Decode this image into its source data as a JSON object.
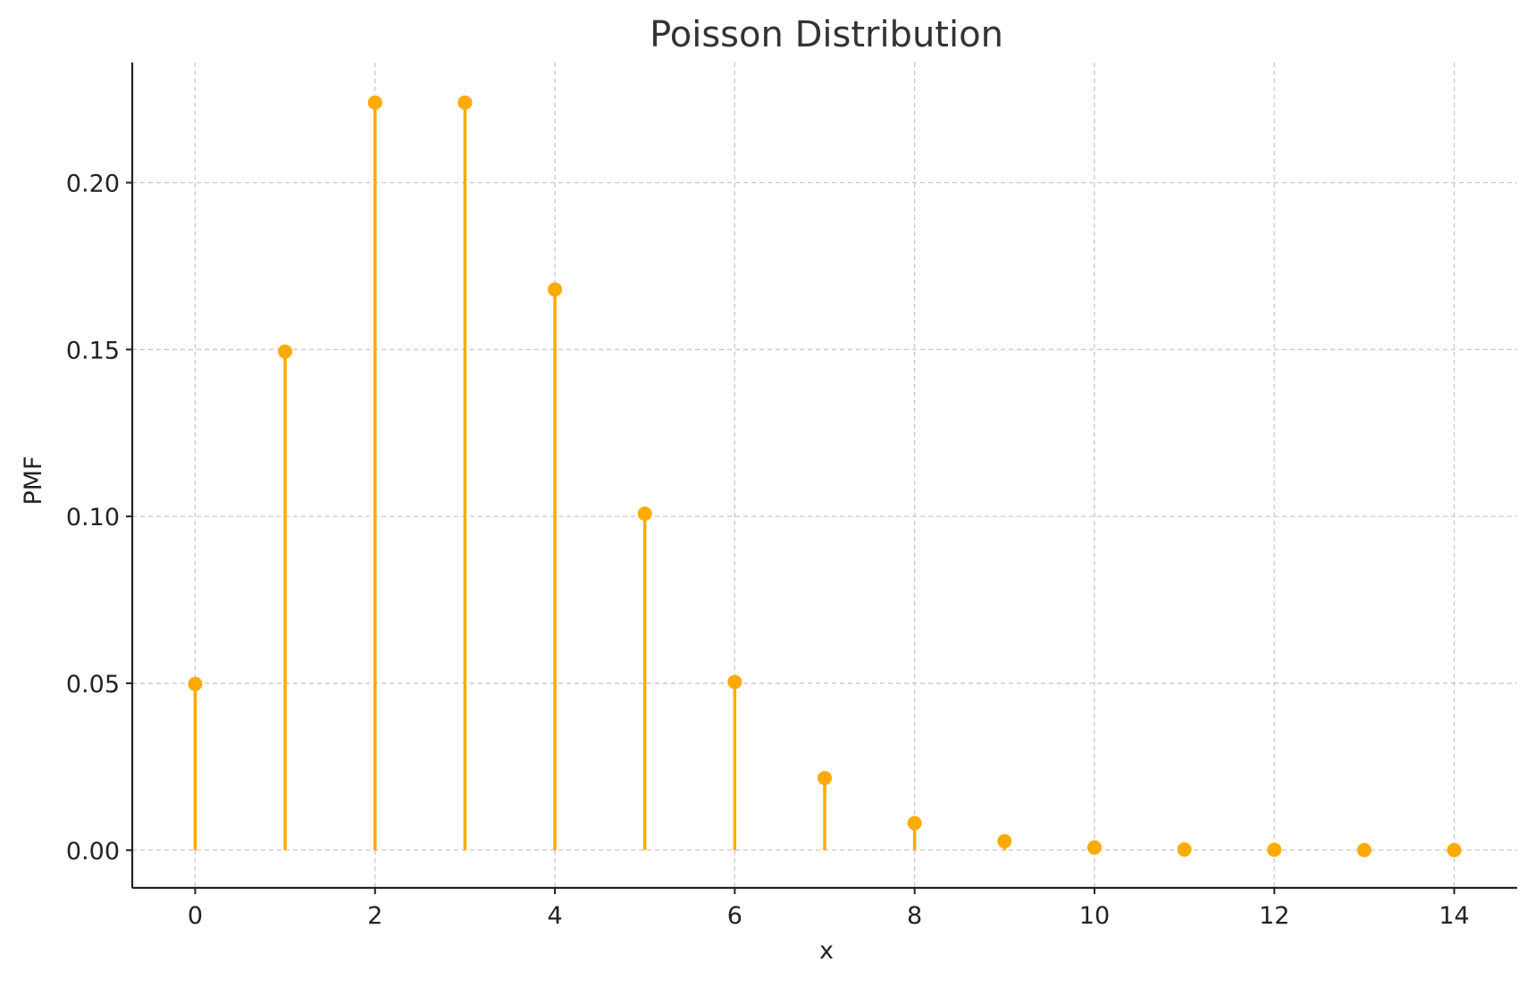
{
  "chart_data": {
    "type": "stem",
    "title": "Poisson Distribution",
    "xlabel": "x",
    "ylabel": "PMF",
    "xlim": [
      -0.7,
      14.7
    ],
    "ylim": [
      -0.0113,
      0.236
    ],
    "xticks": [
      0,
      2,
      4,
      6,
      8,
      10,
      12,
      14
    ],
    "xtick_labels": [
      "0",
      "2",
      "4",
      "6",
      "8",
      "10",
      "12",
      "14"
    ],
    "yticks": [
      0.0,
      0.05,
      0.1,
      0.15,
      0.2
    ],
    "ytick_labels": [
      "0.00",
      "0.05",
      "0.10",
      "0.15",
      "0.20"
    ],
    "grid": true,
    "color": "#FFAA00",
    "x": [
      0,
      1,
      2,
      3,
      4,
      5,
      6,
      7,
      8,
      9,
      10,
      11,
      12,
      13,
      14
    ],
    "values": [
      0.0498,
      0.1494,
      0.224,
      0.224,
      0.168,
      0.1008,
      0.0504,
      0.0216,
      0.0081,
      0.0027,
      0.0008,
      0.0002,
      0.0001,
      0.0,
      0.0
    ]
  }
}
